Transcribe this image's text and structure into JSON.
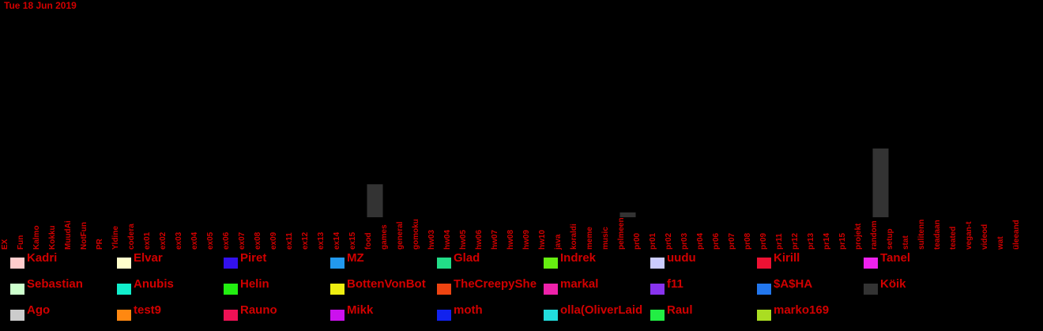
{
  "date_label": "Tue 18 Jun 2019",
  "chart_data": {
    "type": "bar",
    "categories": [
      "EX",
      "Fun",
      "Kalmo",
      "Kokku",
      "MuudAi",
      "NotFun",
      "PR",
      "Yldine",
      "codera",
      "ex01",
      "ex02",
      "ex03",
      "ex04",
      "ex05",
      "ex06",
      "ex07",
      "ex08",
      "ex09",
      "ex11",
      "ex12",
      "ex13",
      "ex14",
      "ex15",
      "food",
      "games",
      "general",
      "gomoku",
      "hw03",
      "hw04",
      "hw05",
      "hw06",
      "hw07",
      "hw08",
      "hw09",
      "hw10",
      "java",
      "koraldi",
      "meme",
      "music",
      "pelmeen",
      "pr00",
      "pr01",
      "pr02",
      "pr03",
      "pr04",
      "pr06",
      "pr07",
      "pr08",
      "pr09",
      "pr11",
      "pr12",
      "pr13",
      "pr14",
      "pr15",
      "projekt",
      "random",
      "setup",
      "stat",
      "sulitenn",
      "teadaan",
      "teated",
      "vegan-t",
      "videod",
      "wat",
      "üleeand"
    ],
    "series": [
      {
        "name": "Köik",
        "color": "#333333",
        "values": [
          0,
          0,
          0,
          0,
          0,
          0,
          0,
          0,
          0,
          0,
          0,
          0,
          0,
          0,
          0,
          0,
          0,
          0,
          0,
          0,
          0,
          0,
          0,
          48,
          0,
          0,
          0,
          0,
          0,
          0,
          0,
          0,
          0,
          0,
          0,
          0,
          0,
          0,
          0,
          7,
          0,
          0,
          0,
          0,
          0,
          0,
          0,
          0,
          0,
          0,
          0,
          0,
          0,
          0,
          0,
          100,
          0,
          0,
          0,
          0,
          0,
          0,
          0,
          0,
          0
        ]
      }
    ],
    "ylim": [
      0,
      100
    ]
  },
  "legend": [
    {
      "name": "Kadri",
      "color": "#ffcccc"
    },
    {
      "name": "Elvar",
      "color": "#ffffcc"
    },
    {
      "name": "Piret",
      "color": "#3311ee"
    },
    {
      "name": "MZ",
      "color": "#2299ee"
    },
    {
      "name": "Glad",
      "color": "#22dd88"
    },
    {
      "name": "Indrek",
      "color": "#66ee11"
    },
    {
      "name": "uudu",
      "color": "#ccccff"
    },
    {
      "name": "Kirill",
      "color": "#ee1133"
    },
    {
      "name": "Tanel",
      "color": "#ee22ee"
    },
    {
      "name": "Sebastian",
      "color": "#ccffcc"
    },
    {
      "name": "Anubis",
      "color": "#11eecc"
    },
    {
      "name": "Helin",
      "color": "#22ee11"
    },
    {
      "name": "BottenVonBot",
      "color": "#eeee11"
    },
    {
      "name": "TheCreepyShe",
      "color": "#ee4411"
    },
    {
      "name": "markal",
      "color": "#ee22aa"
    },
    {
      "name": "f11",
      "color": "#8833ee"
    },
    {
      "name": "$A$HA",
      "color": "#2277ee"
    },
    {
      "name": "Köik",
      "color": "#333333"
    },
    {
      "name": "Ago",
      "color": "#cccccc"
    },
    {
      "name": "test9",
      "color": "#ff8811"
    },
    {
      "name": "Rauno",
      "color": "#ee1155"
    },
    {
      "name": "Mikk",
      "color": "#cc11ee"
    },
    {
      "name": "moth",
      "color": "#1122ee"
    },
    {
      "name": "olla(OliverLaid",
      "color": "#22dddd"
    },
    {
      "name": "Raul",
      "color": "#22ee44"
    },
    {
      "name": "marko169",
      "color": "#aadd22"
    }
  ]
}
